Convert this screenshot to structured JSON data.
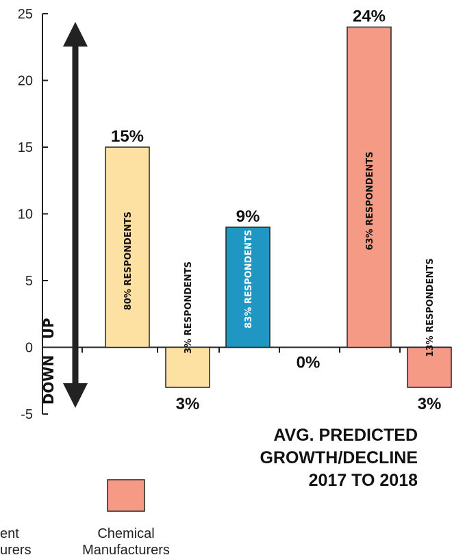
{
  "chart_data": {
    "type": "bar",
    "ylim": [
      -5,
      25
    ],
    "yticks": [
      -5,
      0,
      5,
      10,
      15,
      20,
      25
    ],
    "direction_labels": {
      "up": "UP",
      "down": "DOWN"
    },
    "caption": [
      "AVG. PREDICTED",
      "GROWTH/DECLINE",
      "2017 TO 2018"
    ],
    "groups": [
      {
        "series": "Equipment Manufacturers",
        "color": "#fde1a2",
        "bars": [
          {
            "value": 15,
            "label": "15%",
            "respondents": "80% RESPONDENTS",
            "resp_color": "#111111"
          },
          {
            "value": -3,
            "label": "3%",
            "respondents": "3% RESPONDENTS",
            "resp_color": "#111111"
          }
        ]
      },
      {
        "series": "",
        "color": "#2097c2",
        "bars": [
          {
            "value": 9,
            "label": "9%",
            "respondents": "83% RESPONDENTS",
            "resp_color": "#ffffff"
          },
          {
            "value": 0,
            "label": "0%",
            "respondents": "",
            "resp_color": "#111111"
          }
        ]
      },
      {
        "series": "Chemical Manufacturers",
        "color": "#f59a84",
        "bars": [
          {
            "value": 24,
            "label": "24%",
            "respondents": "63% RESPONDENTS",
            "resp_color": "#111111"
          },
          {
            "value": -3,
            "label": "3%",
            "respondents": "13% RESPONDENTS",
            "resp_color": "#111111"
          }
        ]
      }
    ],
    "legend": [
      {
        "name": "Equipment Manufacturers",
        "lines": [
          "ent",
          "urers"
        ],
        "color": "#fde1a2"
      },
      {
        "name": "Chemical Manufacturers",
        "lines": [
          "Chemical",
          "Manufacturers"
        ],
        "color": "#f59a84"
      }
    ]
  }
}
